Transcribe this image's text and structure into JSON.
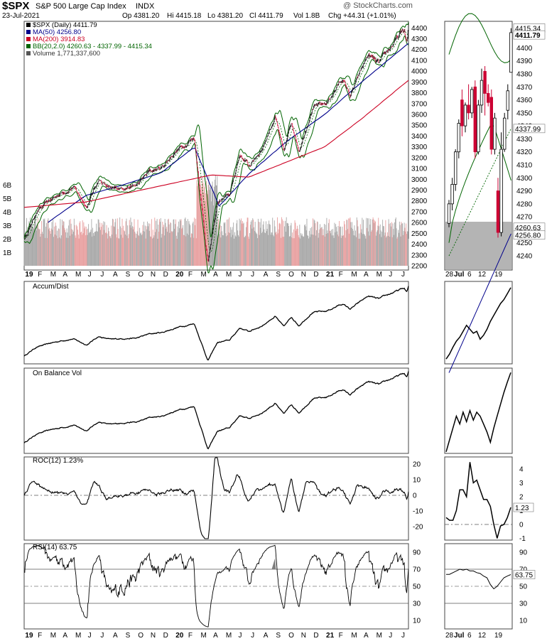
{
  "header": {
    "symbol": "$SPX",
    "name": "S&P 500 Large Cap Index",
    "exchange": "INDX",
    "date": "23-Jul-2021",
    "watermark": "@ StockCharts.com",
    "quote": {
      "open": "Op 4381.20",
      "high": "Hi 4415.18",
      "low": "Lo 4381.20",
      "close": "Cl 4411.79",
      "volume": "Vol 1.8B",
      "change": "Chg +44.31 (+1.01%)"
    }
  },
  "legend": {
    "price": "$SPX (Daily) 4411.79",
    "ma50": "MA(50) 4256.80",
    "ma200": "MA(200) 3914.83",
    "bb": "BB(20,2.0) 4260.63 - 4337.99 - 4415.34",
    "volume": "Volume 1,771,337,600"
  },
  "colors": {
    "ma50": "#00008b",
    "ma200": "#cc0022",
    "bb": "#006400",
    "up_candle": "#000000",
    "down_candle": "#cc0033",
    "volume_up": "#a9a9a9",
    "volume_down": "#e8a0a0",
    "rsi_overbought": "#7f7f7f"
  },
  "months": [
    "19",
    "F",
    "M",
    "A",
    "M",
    "J",
    "J",
    "A",
    "S",
    "O",
    "N",
    "D",
    "20",
    "F",
    "M",
    "A",
    "M",
    "J",
    "J",
    "A",
    "S",
    "O",
    "N",
    "D",
    "21",
    "F",
    "M",
    "A",
    "M",
    "J",
    "J"
  ],
  "inset_dates": [
    "28",
    "Jul",
    "6",
    "12",
    "19"
  ],
  "panels": {
    "price": {
      "ticks": [
        "4400",
        "4300",
        "4200",
        "4100",
        "4000",
        "3900",
        "3800",
        "3700",
        "3600",
        "3500",
        "3400",
        "3300",
        "3200",
        "3100",
        "3000",
        "2900",
        "2800",
        "2700",
        "2600",
        "2500",
        "2400",
        "2300",
        "2200"
      ],
      "volume_ticks": [
        "6B",
        "5B",
        "4B",
        "3B",
        "2B",
        "1B"
      ]
    },
    "accum": {
      "label": "Accum/Dist"
    },
    "obv": {
      "label": "On Balance Vol"
    },
    "roc": {
      "label": "ROC(12) 1.23%",
      "ticks": [
        "20",
        "10",
        "0",
        "-10",
        "-20"
      ],
      "inset_ticks": [
        "4",
        "3",
        "2",
        "1",
        "0",
        "-1"
      ],
      "value_tag": "1.23"
    },
    "rsi": {
      "label": "RSI(14) 63.75",
      "ticks": [
        "90",
        "70",
        "50",
        "30",
        "10"
      ],
      "value_tag": "63.75"
    }
  },
  "inset": {
    "ticks": [
      "4400",
      "4390",
      "4380",
      "4370",
      "4360",
      "4350",
      "4340",
      "4330",
      "4320",
      "4310",
      "4300",
      "4290",
      "4280",
      "4270",
      "4260",
      "4250",
      "4240"
    ],
    "tags": {
      "bb_upper": "4415.34",
      "close": "4411.79",
      "bb_mid": "4337.99",
      "bb_lower": "4260.63",
      "ma50": "4256.80"
    }
  },
  "chart_data": {
    "type": "line",
    "title": "$SPX S&P 500 Large Cap Index",
    "x_range": [
      "2019-01-02",
      "2021-07-23"
    ],
    "series": [
      {
        "name": "$SPX (Daily)",
        "points": [
          [
            "2019-01-03",
            2450
          ],
          [
            "2019-02-01",
            2700
          ],
          [
            "2019-03-01",
            2790
          ],
          [
            "2019-04-01",
            2870
          ],
          [
            "2019-05-01",
            2930
          ],
          [
            "2019-06-03",
            2750
          ],
          [
            "2019-07-01",
            3000
          ],
          [
            "2019-08-01",
            2900
          ],
          [
            "2019-09-03",
            2930
          ],
          [
            "2019-10-01",
            2940
          ],
          [
            "2019-11-01",
            3070
          ],
          [
            "2019-12-02",
            3110
          ],
          [
            "2020-01-02",
            3250
          ],
          [
            "2020-02-19",
            3390
          ],
          [
            "2020-03-23",
            2230
          ],
          [
            "2020-04-15",
            2780
          ],
          [
            "2020-05-15",
            2860
          ],
          [
            "2020-06-08",
            3230
          ],
          [
            "2020-07-01",
            3120
          ],
          [
            "2020-08-03",
            3300
          ],
          [
            "2020-09-02",
            3580
          ],
          [
            "2020-09-23",
            3240
          ],
          [
            "2020-10-12",
            3530
          ],
          [
            "2020-10-30",
            3270
          ],
          [
            "2020-12-01",
            3660
          ],
          [
            "2021-01-04",
            3700
          ],
          [
            "2021-02-12",
            3930
          ],
          [
            "2021-03-04",
            3770
          ],
          [
            "2021-04-15",
            4150
          ],
          [
            "2021-05-12",
            4060
          ],
          [
            "2021-06-15",
            4250
          ],
          [
            "2021-07-12",
            4380
          ],
          [
            "2021-07-19",
            4258
          ],
          [
            "2021-07-23",
            4411.79
          ]
        ]
      },
      {
        "name": "MA(50)",
        "points": [
          [
            "2019-03-01",
            2600
          ],
          [
            "2019-06-01",
            2850
          ],
          [
            "2019-09-01",
            2950
          ],
          [
            "2019-12-01",
            3060
          ],
          [
            "2020-02-20",
            3300
          ],
          [
            "2020-04-20",
            2750
          ],
          [
            "2020-07-01",
            3050
          ],
          [
            "2020-10-01",
            3350
          ],
          [
            "2021-01-01",
            3600
          ],
          [
            "2021-04-01",
            3900
          ],
          [
            "2021-07-23",
            4256.8
          ]
        ]
      },
      {
        "name": "MA(200)",
        "points": [
          [
            "2019-01-02",
            2740
          ],
          [
            "2019-06-01",
            2790
          ],
          [
            "2019-12-01",
            2940
          ],
          [
            "2020-04-01",
            3040
          ],
          [
            "2020-07-01",
            3020
          ],
          [
            "2020-10-01",
            3160
          ],
          [
            "2021-01-01",
            3300
          ],
          [
            "2021-04-01",
            3560
          ],
          [
            "2021-07-23",
            3914.83
          ]
        ]
      }
    ],
    "inset_candles": [
      [
        4265,
        4283,
        4262,
        4280
      ],
      [
        4280,
        4300,
        4275,
        4295
      ],
      [
        4295,
        4322,
        4290,
        4320
      ],
      [
        4320,
        4345,
        4315,
        4342
      ],
      [
        4360,
        4368,
        4332,
        4340
      ],
      [
        4340,
        4358,
        4335,
        4356
      ],
      [
        4356,
        4372,
        4345,
        4350
      ],
      [
        4350,
        4370,
        4346,
        4368
      ],
      [
        4370,
        4375,
        4315,
        4320
      ],
      [
        4320,
        4360,
        4318,
        4356
      ],
      [
        4356,
        4384,
        4350,
        4375
      ],
      [
        4382,
        4386,
        4348,
        4365
      ],
      [
        4365,
        4372,
        4355,
        4358
      ],
      [
        4362,
        4368,
        4318,
        4322
      ],
      [
        4322,
        4350,
        4318,
        4346
      ],
      [
        4290,
        4300,
        4254,
        4258
      ],
      [
        4258,
        4335,
        4255,
        4322
      ],
      [
        4322,
        4350,
        4320,
        4346
      ],
      [
        4352,
        4372,
        4345,
        4367
      ],
      [
        4381.2,
        4415.18,
        4381.2,
        4411.79
      ]
    ],
    "roc_inset": [
      0.5,
      0.3,
      0.3,
      1.0,
      2.5,
      2.5,
      2.0,
      4.5,
      3.0,
      3.2,
      2.5,
      1.8,
      1.8,
      1.3,
      0.0,
      -1.0,
      -0.1,
      0.0,
      0.5,
      1.23
    ],
    "rsi_inset": [
      64,
      64,
      66,
      68,
      70,
      69,
      70,
      68,
      68,
      66,
      65,
      62,
      60,
      52,
      47,
      50,
      55,
      60,
      62,
      63.75
    ]
  }
}
